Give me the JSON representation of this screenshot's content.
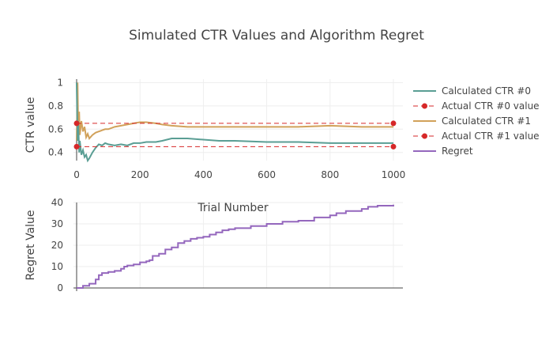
{
  "chart_data": {
    "type": "line",
    "title": "Simulated CTR Values and Algorithm Regret",
    "colors": {
      "ctr0": "#5a9e94",
      "ctr1": "#d1a15a",
      "actual": "#d62728",
      "regret": "#9467bd",
      "grid": "#eeeeee",
      "axis": "#444444"
    },
    "legend": {
      "placement": "right",
      "entries": [
        {
          "key": "ctr0",
          "name": "Calculated CTR #0"
        },
        {
          "key": "actual0",
          "name": "Actual CTR #0 value"
        },
        {
          "key": "ctr1",
          "name": "Calculated CTR #1"
        },
        {
          "key": "actual1",
          "name": "Actual CTR #1 value"
        },
        {
          "key": "regret",
          "name": "Regret"
        }
      ]
    },
    "top": {
      "ylabel": "CTR value",
      "xlim": [
        -10,
        1030
      ],
      "ylim": [
        0.33,
        1.03
      ],
      "xticks": [
        0,
        200,
        400,
        600,
        800,
        1000
      ],
      "yticks": [
        0.4,
        0.6,
        0.8,
        1
      ],
      "yticklabels": [
        "0.4",
        "0.6",
        "0.8",
        "1"
      ],
      "series": [
        {
          "name": "Calculated CTR #0",
          "x": [
            0,
            3,
            5,
            8,
            10,
            15,
            20,
            25,
            30,
            35,
            40,
            50,
            60,
            70,
            80,
            90,
            100,
            120,
            140,
            160,
            180,
            200,
            220,
            250,
            270,
            300,
            350,
            400,
            450,
            500,
            600,
            700,
            800,
            900,
            1000
          ],
          "y": [
            1.0,
            0.5,
            0.67,
            0.4,
            0.5,
            0.38,
            0.42,
            0.36,
            0.38,
            0.33,
            0.35,
            0.4,
            0.44,
            0.47,
            0.46,
            0.48,
            0.47,
            0.46,
            0.47,
            0.46,
            0.48,
            0.48,
            0.49,
            0.49,
            0.5,
            0.52,
            0.52,
            0.51,
            0.5,
            0.5,
            0.49,
            0.49,
            0.48,
            0.48,
            0.48
          ]
        },
        {
          "name": "Calculated CTR #1",
          "x": [
            0,
            3,
            5,
            8,
            10,
            15,
            20,
            25,
            30,
            35,
            40,
            50,
            60,
            70,
            80,
            90,
            100,
            120,
            140,
            160,
            180,
            200,
            220,
            250,
            270,
            300,
            350,
            400,
            450,
            500,
            600,
            700,
            800,
            900,
            1000
          ],
          "y": [
            0.5,
            1.0,
            0.6,
            0.75,
            0.55,
            0.67,
            0.58,
            0.62,
            0.53,
            0.56,
            0.52,
            0.55,
            0.57,
            0.58,
            0.59,
            0.6,
            0.6,
            0.62,
            0.63,
            0.64,
            0.65,
            0.66,
            0.66,
            0.65,
            0.64,
            0.63,
            0.62,
            0.62,
            0.62,
            0.62,
            0.62,
            0.62,
            0.63,
            0.62,
            0.62
          ]
        },
        {
          "name": "Actual CTR #0 value",
          "x": [
            0,
            1000
          ],
          "y": [
            0.45,
            0.45
          ]
        },
        {
          "name": "Actual CTR #1 value",
          "x": [
            0,
            1000
          ],
          "y": [
            0.65,
            0.65
          ]
        }
      ]
    },
    "bottom": {
      "xlabel": "Trial Number",
      "ylabel": "Regret Value",
      "xlim": [
        -10,
        1070
      ],
      "ylim": [
        0,
        40
      ],
      "yticks": [
        0,
        10,
        20,
        30,
        40
      ],
      "series": [
        {
          "name": "Regret",
          "x": [
            0,
            20,
            40,
            60,
            70,
            80,
            100,
            120,
            140,
            150,
            160,
            180,
            200,
            220,
            230,
            240,
            260,
            280,
            300,
            320,
            340,
            360,
            380,
            400,
            420,
            440,
            460,
            480,
            500,
            550,
            600,
            650,
            700,
            750,
            800,
            820,
            850,
            900,
            920,
            950,
            1000
          ],
          "y": [
            0,
            1,
            2,
            4,
            6,
            7,
            7.5,
            8,
            9,
            10,
            10.5,
            11,
            12,
            12.5,
            13,
            15,
            16,
            18,
            19,
            21,
            22,
            23,
            23.5,
            24,
            25,
            26,
            27,
            27.5,
            28,
            29,
            30,
            31,
            31.5,
            33,
            34,
            35,
            36,
            37,
            38,
            38.5,
            39
          ]
        }
      ]
    }
  }
}
